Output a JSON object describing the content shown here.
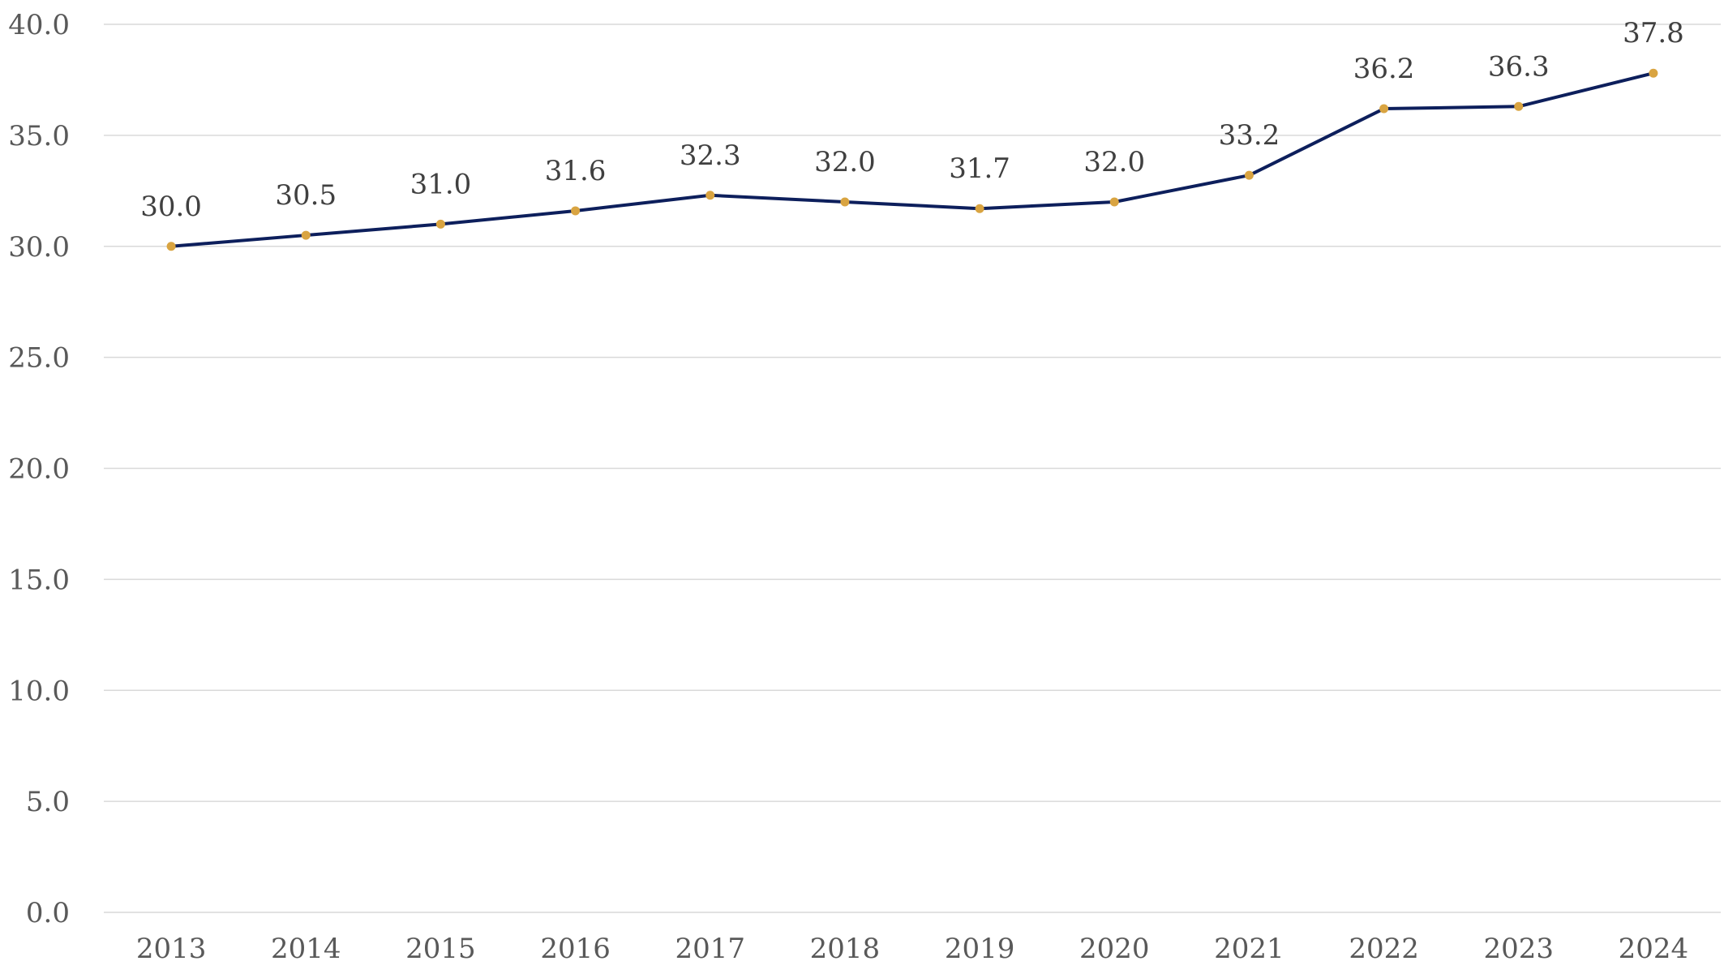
{
  "chart_data": {
    "type": "line",
    "title": "",
    "xlabel": "",
    "ylabel": "",
    "categories": [
      "2013",
      "2014",
      "2015",
      "2016",
      "2017",
      "2018",
      "2019",
      "2020",
      "2021",
      "2022",
      "2023",
      "2024"
    ],
    "series": [
      {
        "values": [
          30.0,
          30.5,
          31.0,
          31.6,
          32.3,
          32.0,
          31.7,
          32.0,
          33.2,
          36.2,
          36.3,
          37.8
        ]
      }
    ],
    "data_labels": [
      "30.0",
      "30.5",
      "31.0",
      "31.6",
      "32.3",
      "32.0",
      "31.7",
      "32.0",
      "33.2",
      "36.2",
      "36.3",
      "37.8"
    ],
    "ylim": [
      0,
      40
    ],
    "yticks": [
      0,
      5,
      10,
      15,
      20,
      25,
      30,
      35,
      40
    ],
    "ytick_labels": [
      "0.0",
      "5.0",
      "10.0",
      "15.0",
      "20.0",
      "25.0",
      "30.0",
      "35.0",
      "40.0"
    ],
    "grid": true,
    "legend": "none",
    "colors": {
      "line": "#0d1f5c",
      "marker": "#d9a441",
      "grid": "#d9d9d9",
      "tick_text": "#595959",
      "label_text": "#404040"
    }
  }
}
